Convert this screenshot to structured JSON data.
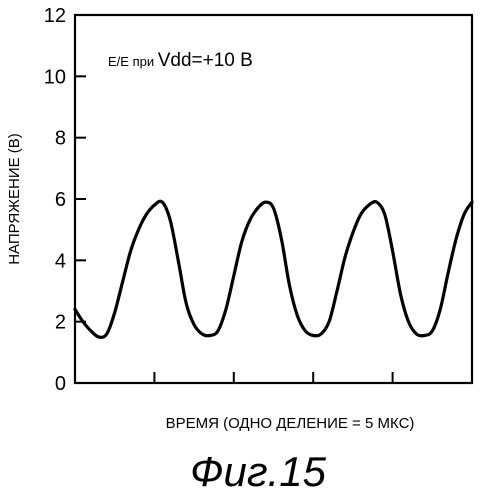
{
  "chart_data": {
    "type": "line",
    "xlabel": "ВРЕМЯ (ОДНО ДЕЛЕНИЕ = 5 МКС)",
    "ylabel": "НАПРЯЖЕНИЕ (В)",
    "ylim": [
      0,
      12
    ],
    "yticks": [
      "0",
      "2",
      "4",
      "6",
      "8",
      "10",
      "12"
    ],
    "xlim": [
      0,
      25
    ],
    "x_divisions": 5,
    "grid": false,
    "annotation": {
      "prefix": "Е/Е при ",
      "main": "Vdd=+10 В"
    },
    "series": [
      {
        "x": [
          0,
          0.5,
          1,
          1.5,
          2,
          2.5,
          3,
          3.5,
          4,
          4.5,
          5,
          5.5,
          6,
          6.5,
          7,
          7.5,
          8,
          8.5,
          9,
          9.5,
          10,
          10.5,
          11,
          11.5,
          12,
          12.5,
          13,
          13.5,
          14,
          14.5,
          15,
          15.5,
          16,
          16.5,
          17,
          17.5,
          18,
          18.5,
          19,
          19.5,
          20,
          20.5,
          21,
          21.5,
          22,
          22.5,
          23,
          23.5,
          24,
          24.5,
          25
        ],
        "values": [
          2.4,
          2.0,
          1.7,
          1.5,
          1.6,
          2.3,
          3.3,
          4.3,
          5.0,
          5.5,
          5.8,
          5.9,
          5.3,
          4.0,
          2.6,
          1.9,
          1.6,
          1.55,
          1.7,
          2.4,
          3.5,
          4.6,
          5.3,
          5.7,
          5.9,
          5.7,
          4.7,
          3.2,
          2.2,
          1.7,
          1.55,
          1.6,
          2.0,
          3.0,
          4.1,
          4.9,
          5.5,
          5.8,
          5.9,
          5.5,
          4.3,
          2.9,
          2.0,
          1.6,
          1.55,
          1.7,
          2.4,
          3.6,
          4.7,
          5.5,
          5.9
        ]
      }
    ]
  },
  "figure_label": "Фиг.15"
}
